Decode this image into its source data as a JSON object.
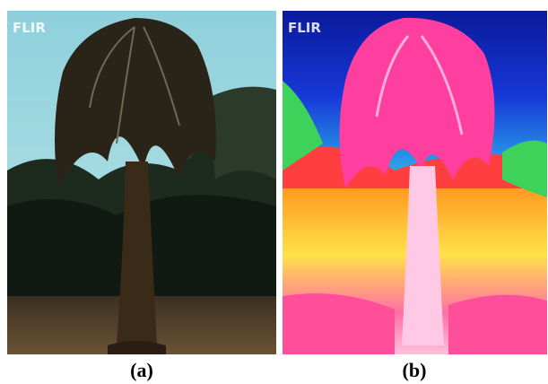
{
  "panels": [
    {
      "logo": "FLIR",
      "caption": "(a)"
    },
    {
      "logo": "FLIR",
      "caption": "(b)"
    }
  ]
}
